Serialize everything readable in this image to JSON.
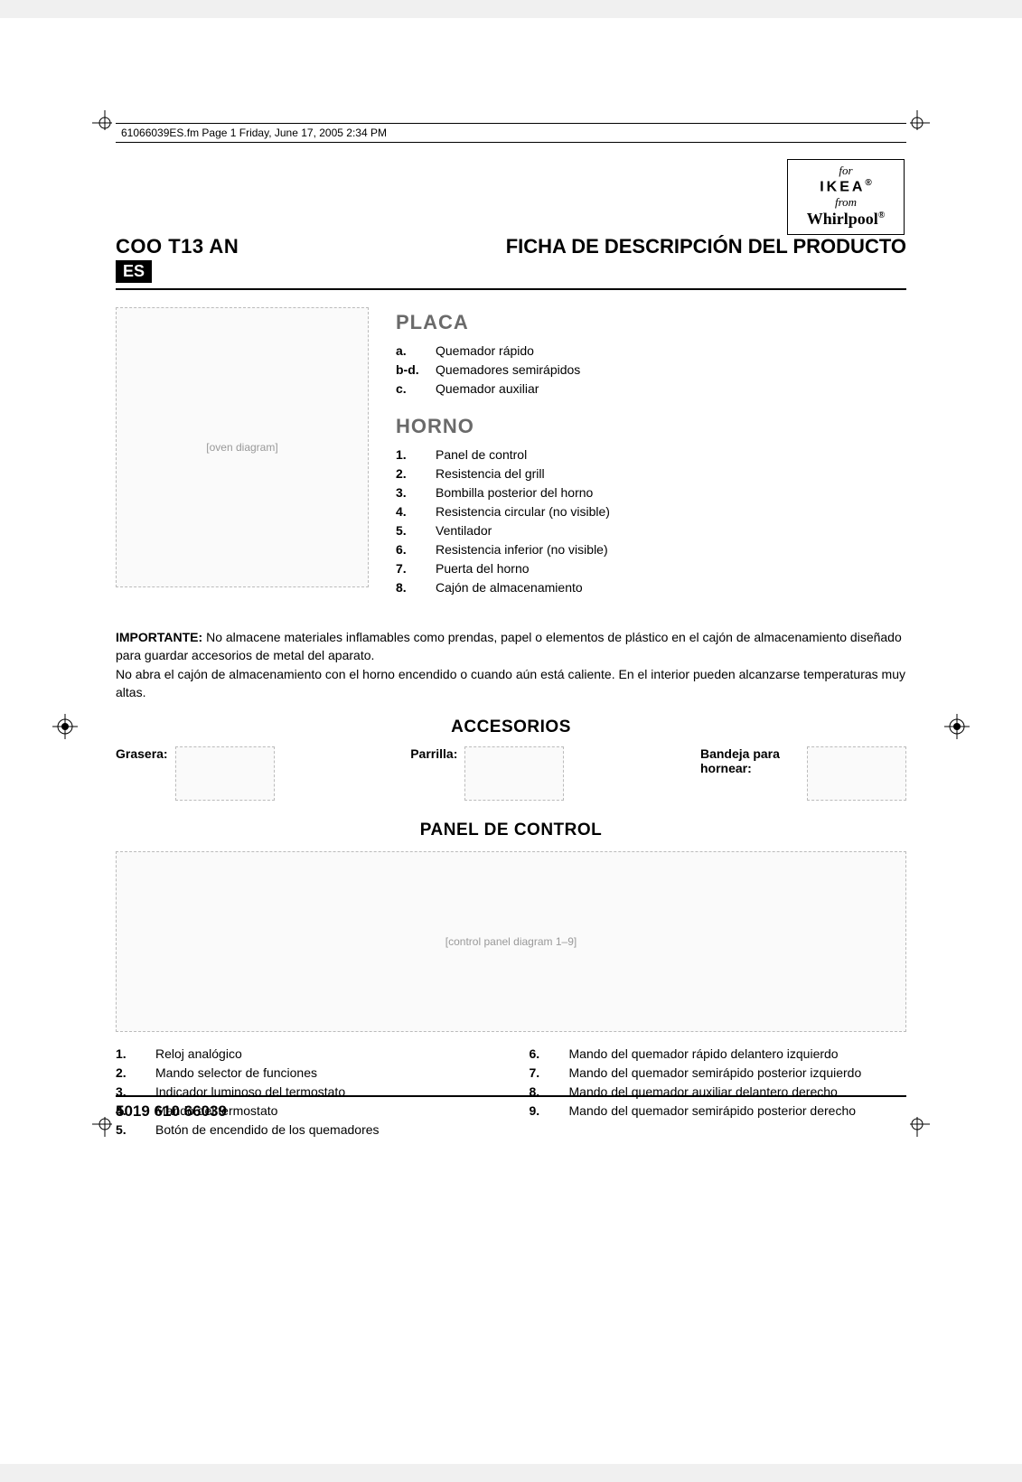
{
  "file_info": "61066039ES.fm  Page 1  Friday, June 17, 2005  2:34 PM",
  "logo": {
    "for": "for",
    "ikea": "IKEA",
    "reg": "®",
    "from": "from",
    "whirlpool": "Whirlpool"
  },
  "header": {
    "model": "COO  T13 AN",
    "lang": "ES",
    "title": "FICHA DE DESCRIPCIÓN DEL PRODUCTO"
  },
  "placa": {
    "title": "PLACA",
    "items": [
      {
        "k": "a.",
        "v": "Quemador rápido"
      },
      {
        "k": "b-d.",
        "v": "Quemadores semirápidos"
      },
      {
        "k": "c.",
        "v": "Quemador auxiliar"
      }
    ]
  },
  "horno": {
    "title": "HORNO",
    "items": [
      {
        "k": "1.",
        "v": "Panel de control"
      },
      {
        "k": "2.",
        "v": "Resistencia del grill"
      },
      {
        "k": "3.",
        "v": "Bombilla posterior del horno"
      },
      {
        "k": "4.",
        "v": "Resistencia circular (no visible)"
      },
      {
        "k": "5.",
        "v": "Ventilador"
      },
      {
        "k": "6.",
        "v": "Resistencia inferior (no visible)"
      },
      {
        "k": "7.",
        "v": "Puerta del horno"
      },
      {
        "k": "8.",
        "v": "Cajón de almacenamiento"
      }
    ]
  },
  "important": {
    "lead": "IMPORTANTE:",
    "body1": " No almacene materiales inflamables como prendas, papel o elementos de plástico en el cajón de almacenamiento diseñado para guardar accesorios de metal del aparato.",
    "body2": "No abra el cajón de almacenamiento con el horno encendido o cuando aún está caliente. En el interior pueden alcanzarse temperaturas muy altas."
  },
  "accesorios": {
    "title": "ACCESORIOS",
    "items": [
      {
        "label": "Grasera:"
      },
      {
        "label": "Parrilla:"
      },
      {
        "label": "Bandeja para hornear:"
      }
    ]
  },
  "panel": {
    "title": "PANEL DE CONTROL",
    "left": [
      {
        "k": "1.",
        "v": "Reloj analógico"
      },
      {
        "k": "2.",
        "v": "Mando selector de funciones"
      },
      {
        "k": "3.",
        "v": "Indicador luminoso del termostato"
      },
      {
        "k": "4.",
        "v": "Mando del termostato"
      },
      {
        "k": "5.",
        "v": "Botón de encendido de los quemadores"
      }
    ],
    "right": [
      {
        "k": "6.",
        "v": "Mando del quemador rápido delantero izquierdo"
      },
      {
        "k": "7.",
        "v": "Mando del quemador semirápido posterior izquierdo"
      },
      {
        "k": "8.",
        "v": "Mando del quemador auxiliar delantero derecho"
      },
      {
        "k": "9.",
        "v": "Mando del quemador semirápido posterior derecho"
      }
    ]
  },
  "footer": "5019 610 66039",
  "figure_labels": {
    "oven": "[oven diagram]",
    "panel": "[control panel diagram 1–9]"
  }
}
